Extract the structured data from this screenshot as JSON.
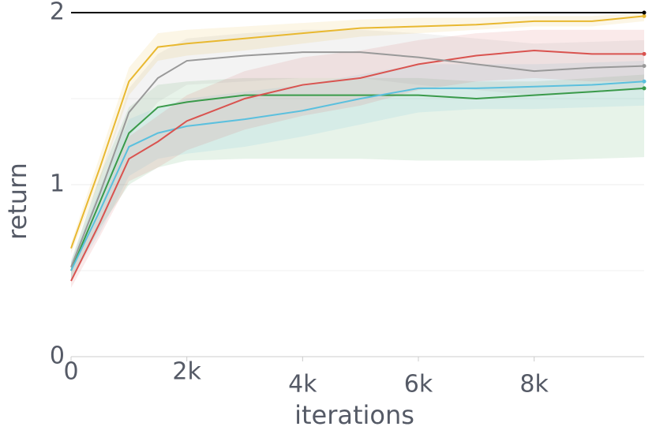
{
  "chart_data": {
    "type": "line",
    "x_label": "iterations",
    "y_label": "return",
    "x": [
      0,
      500,
      1000,
      1500,
      2000,
      3000,
      4000,
      5000,
      6000,
      7000,
      8000,
      9000,
      9900
    ],
    "xlim": [
      0,
      9900
    ],
    "ylim": [
      0,
      2
    ],
    "xticks": [
      0,
      {
        "value": 2000,
        "label": "2k"
      },
      {
        "value": 4000,
        "label": "4k"
      },
      {
        "value": 6000,
        "label": "6k"
      },
      {
        "value": 8000,
        "label": "8k"
      }
    ],
    "yticks": [
      0,
      1,
      2
    ],
    "yminor": [
      0.5,
      1.5
    ],
    "grid": true,
    "series": [
      {
        "color": "#3a9a4a",
        "values": [
          0.5,
          0.9,
          1.3,
          1.45,
          1.48,
          1.52,
          1.52,
          1.52,
          1.52,
          1.5,
          1.52,
          1.54,
          1.56
        ],
        "lower": [
          0.45,
          0.75,
          1.0,
          1.1,
          1.14,
          1.15,
          1.15,
          1.15,
          1.14,
          1.14,
          1.14,
          1.15,
          1.16
        ],
        "upper": [
          0.55,
          1.05,
          1.45,
          1.58,
          1.6,
          1.62,
          1.62,
          1.62,
          1.62,
          1.6,
          1.6,
          1.62,
          1.64
        ]
      },
      {
        "color": "#5bc0de",
        "values": [
          0.5,
          0.85,
          1.22,
          1.3,
          1.34,
          1.38,
          1.43,
          1.5,
          1.56,
          1.56,
          1.57,
          1.58,
          1.6
        ],
        "lower": [
          0.45,
          0.72,
          1.05,
          1.15,
          1.18,
          1.22,
          1.28,
          1.35,
          1.42,
          1.44,
          1.44,
          1.45,
          1.46
        ],
        "upper": [
          0.55,
          0.98,
          1.38,
          1.45,
          1.5,
          1.54,
          1.58,
          1.64,
          1.7,
          1.7,
          1.7,
          1.71,
          1.72
        ]
      },
      {
        "color": "#d9534f",
        "values": [
          0.44,
          0.78,
          1.15,
          1.25,
          1.37,
          1.5,
          1.58,
          1.62,
          1.7,
          1.75,
          1.78,
          1.76,
          1.76
        ],
        "lower": [
          0.4,
          0.7,
          1.02,
          1.1,
          1.2,
          1.32,
          1.4,
          1.46,
          1.55,
          1.6,
          1.62,
          1.6,
          1.6
        ],
        "upper": [
          0.48,
          0.86,
          1.28,
          1.4,
          1.52,
          1.66,
          1.74,
          1.78,
          1.84,
          1.88,
          1.9,
          1.9,
          1.9
        ]
      },
      {
        "color": "#999999",
        "values": [
          0.52,
          0.95,
          1.42,
          1.62,
          1.72,
          1.75,
          1.77,
          1.77,
          1.74,
          1.7,
          1.66,
          1.68,
          1.69
        ],
        "lower": [
          0.48,
          0.85,
          1.28,
          1.48,
          1.58,
          1.6,
          1.62,
          1.62,
          1.58,
          1.55,
          1.52,
          1.54,
          1.55
        ],
        "upper": [
          0.56,
          1.05,
          1.56,
          1.76,
          1.85,
          1.88,
          1.9,
          1.9,
          1.88,
          1.85,
          1.82,
          1.83,
          1.84
        ]
      },
      {
        "color": "#e8b830",
        "values": [
          0.63,
          1.1,
          1.6,
          1.8,
          1.82,
          1.85,
          1.88,
          1.91,
          1.92,
          1.93,
          1.95,
          1.95,
          1.98
        ],
        "lower": [
          0.6,
          1.03,
          1.52,
          1.72,
          1.75,
          1.78,
          1.82,
          1.86,
          1.88,
          1.9,
          1.92,
          1.92,
          1.95
        ],
        "upper": [
          0.66,
          1.17,
          1.68,
          1.88,
          1.9,
          1.92,
          1.94,
          1.96,
          1.97,
          1.97,
          1.98,
          1.98,
          2.0
        ]
      },
      {
        "color": "#000000",
        "values": [
          2.0,
          2.0,
          2.0,
          2.0,
          2.0,
          2.0,
          2.0,
          2.0,
          2.0,
          2.0,
          2.0,
          2.0,
          2.0
        ]
      }
    ]
  }
}
